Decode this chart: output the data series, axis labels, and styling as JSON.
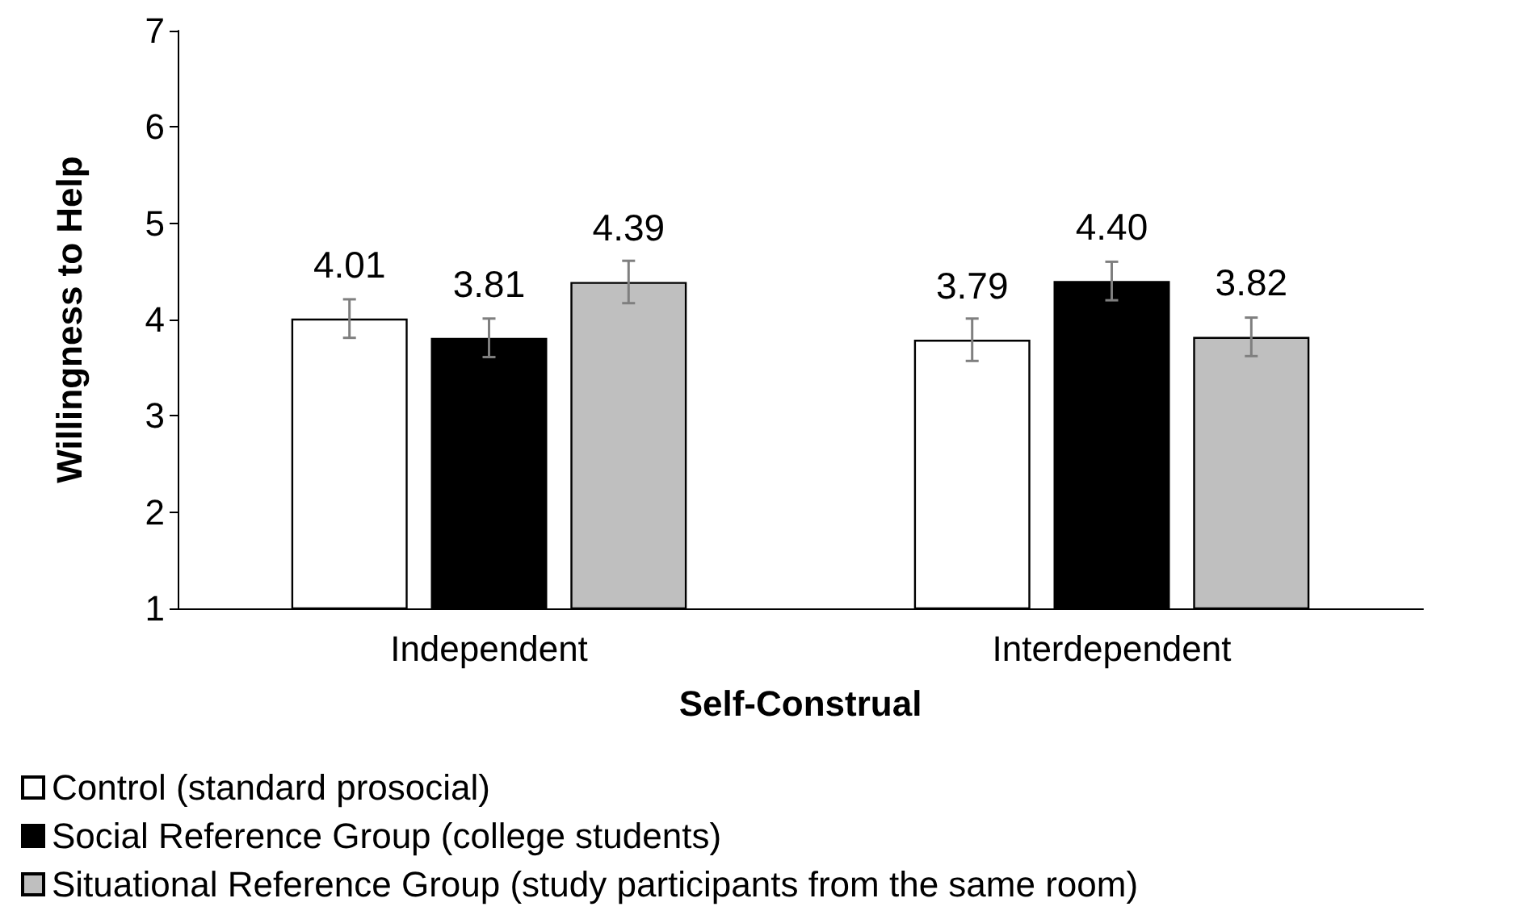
{
  "chart_data": {
    "type": "bar",
    "xlabel": "Self-Construal",
    "ylabel": "Willingness to Help",
    "categories": [
      "Independent",
      "Interdependent"
    ],
    "series": [
      {
        "name": "Control (standard prosocial)",
        "color": "#ffffff",
        "values": [
          4.01,
          3.79
        ],
        "value_labels": [
          "4.01",
          "3.79"
        ],
        "errors": [
          0.2,
          0.22
        ]
      },
      {
        "name": "Social Reference Group (college students)",
        "color": "#000000",
        "values": [
          3.81,
          4.4
        ],
        "value_labels": [
          "3.81",
          "4.40"
        ],
        "errors": [
          0.2,
          0.2
        ]
      },
      {
        "name": "Situational Reference Group (study participants from the same room)",
        "color": "#bfbfbf",
        "values": [
          4.39,
          3.82
        ],
        "value_labels": [
          "4.39",
          "3.82"
        ],
        "errors": [
          0.22,
          0.2
        ]
      }
    ],
    "ylim": [
      1,
      7
    ],
    "yticks": [
      1,
      2,
      3,
      4,
      5,
      6,
      7
    ],
    "legend": "bottom left",
    "grid": false
  }
}
